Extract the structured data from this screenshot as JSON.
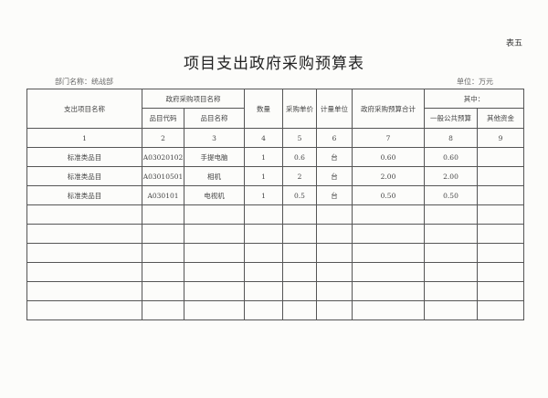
{
  "table_tag": "表五",
  "title": "项目支出政府采购预算表",
  "department": "部门名称：统战部",
  "unit": "单位：万元",
  "headers": {
    "item_name": "支出项目名称",
    "proc_name": "政府采购项目名称",
    "code": "品目代码",
    "name": "品目名称",
    "qty": "数量",
    "price": "采购单价",
    "measure": "计量单位",
    "total": "政府采购预算合计",
    "of_which": "其中：",
    "general": "一般公共预算",
    "other": "其他资金"
  },
  "col_numbers": [
    "1",
    "2",
    "3",
    "4",
    "5",
    "6",
    "7",
    "8",
    "9"
  ],
  "rows": [
    [
      "标准类品目",
      "A03020102",
      "手提电脑",
      "1",
      "0.6",
      "台",
      "0.60",
      "0.60",
      ""
    ],
    [
      "标准类品目",
      "A03010501",
      "相机",
      "1",
      "2",
      "台",
      "2.00",
      "2.00",
      ""
    ],
    [
      "标准类品目",
      "A030101",
      "电视机",
      "1",
      "0.5",
      "台",
      "0.50",
      "0.50",
      ""
    ]
  ],
  "empty_rows": 6
}
